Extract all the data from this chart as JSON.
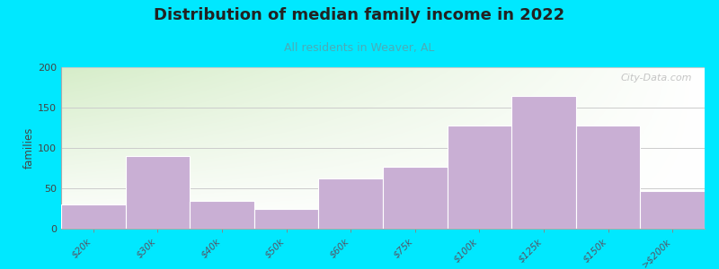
{
  "title": "Distribution of median family income in 2022",
  "subtitle": "All residents in Weaver, AL",
  "categories": [
    "$20k",
    "$30k",
    "$40k",
    "$50k",
    "$60k",
    "$75k",
    "$100k",
    "$125k",
    "$150k",
    ">$200k"
  ],
  "values": [
    30,
    90,
    35,
    25,
    62,
    77,
    128,
    165,
    128,
    47
  ],
  "bar_color": "#c9afd4",
  "bar_edge_color": "#ffffff",
  "ylabel": "families",
  "ylim": [
    0,
    200
  ],
  "yticks": [
    0,
    50,
    100,
    150,
    200
  ],
  "background_outer": "#00e8ff",
  "background_inner_topleft": "#d6edc9",
  "background_inner_right": "#f0ede8",
  "background_inner_bottom": "#ffffff",
  "title_fontsize": 13,
  "subtitle_fontsize": 9,
  "subtitle_color": "#4aacb8",
  "watermark": "City-Data.com"
}
